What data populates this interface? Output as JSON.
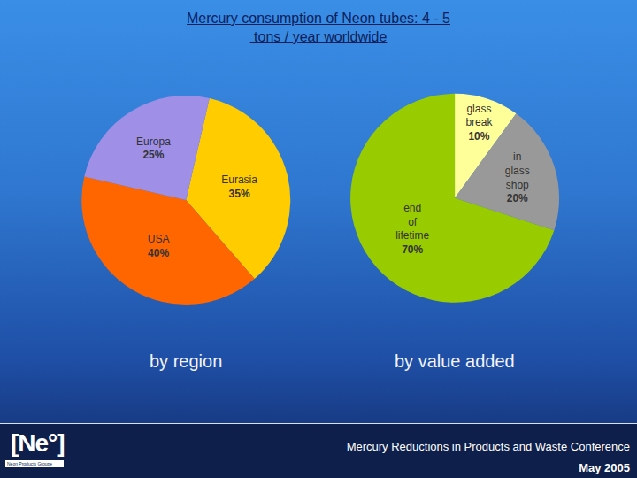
{
  "slide": {
    "title": [
      "Mercury consumption of Neon tubes: 4 - 5",
      " tons / year worldwide"
    ],
    "footer": {
      "logo": "[Ne°]",
      "logo_caption": "Neon Products Groupe",
      "conference": "Mercury Reductions in Products and Waste Conference",
      "date": "May 2005"
    }
  },
  "chart_data": [
    {
      "type": "pie",
      "title": "by region",
      "categories": [
        "Eurasia",
        "USA",
        "Europa"
      ],
      "values": [
        35,
        40,
        25
      ],
      "value_labels": [
        "35%",
        "40%",
        "25%"
      ],
      "colors": [
        "#ffcc00",
        "#ff6600",
        "#9f8fe6"
      ],
      "data_labels": true
    },
    {
      "type": "pie",
      "title": "by value added",
      "categories": [
        "glass break",
        "in glass shop",
        "end of lifetime"
      ],
      "values": [
        10,
        20,
        70
      ],
      "value_labels": [
        "10%",
        "20%",
        "70%"
      ],
      "colors": [
        "#ffff99",
        "#999999",
        "#99cc00"
      ],
      "data_labels": true
    }
  ]
}
